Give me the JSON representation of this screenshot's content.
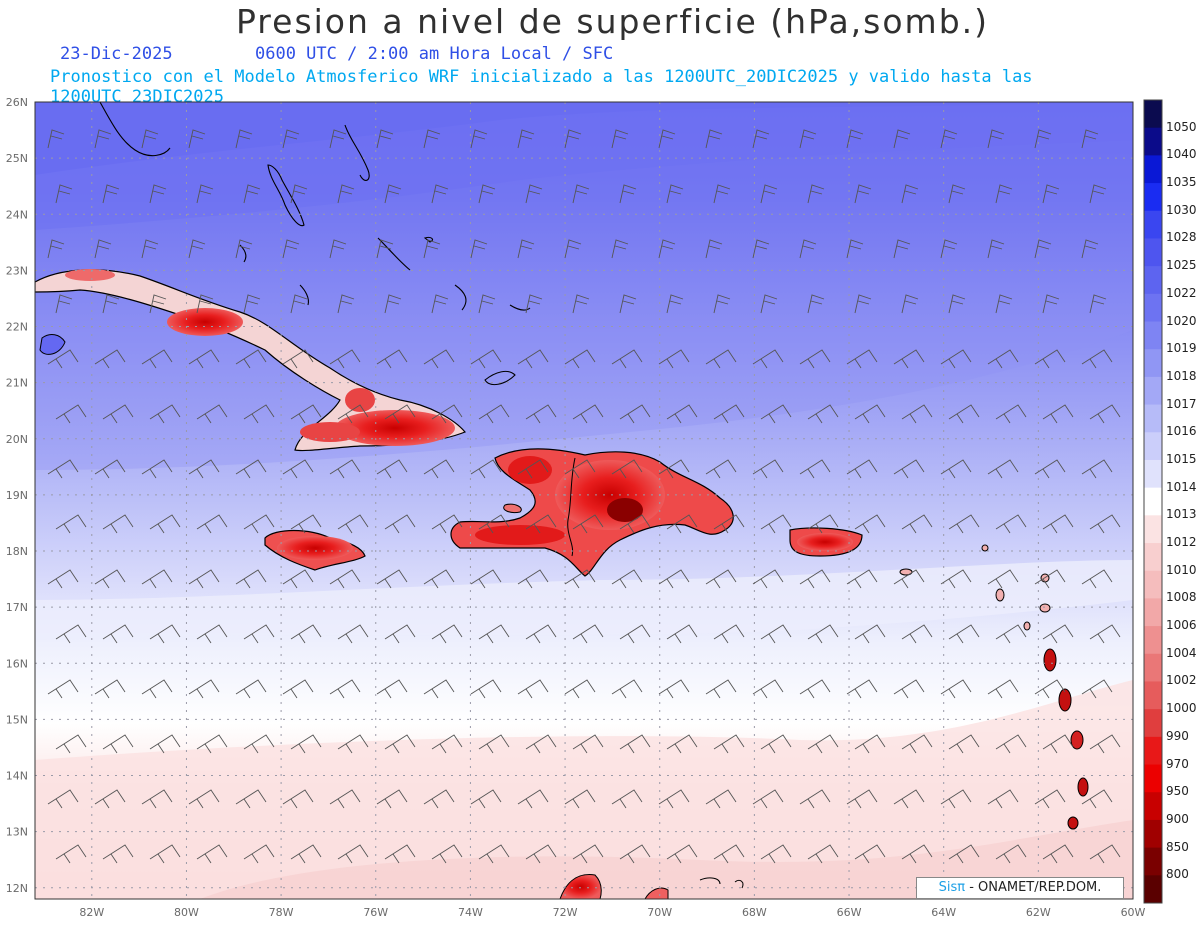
{
  "header": {
    "title": "Presion a nivel de superficie (hPa,somb.)",
    "date": "23-Dic-2025",
    "valid_time": "0600 UTC / 2:00 am Hora Local / SFC",
    "forecast_info": "Pronostico con el Modelo Atmosferico WRF inicializado a las 1200UTC_20DIC2025 y valido hasta las  1200UTC_23DIC2025"
  },
  "map": {
    "lat_labels": [
      "26N",
      "25N",
      "24N",
      "23N",
      "22N",
      "21N",
      "20N",
      "19N",
      "18N",
      "17N",
      "16N",
      "15N",
      "14N",
      "13N",
      "12N"
    ],
    "lon_labels": [
      "82W",
      "80W",
      "78W",
      "76W",
      "74W",
      "72W",
      "70W",
      "68W",
      "66W",
      "64W",
      "62W",
      "60W"
    ],
    "extent": {
      "lon_min": -83.2,
      "lon_max": -60.0,
      "lat_min": 11.8,
      "lat_max": 26.0
    },
    "islands": [
      "Cuba",
      "Jamaica",
      "Haiti",
      "Republica Dominicana",
      "Puerto Rico",
      "Bahamas",
      "Antillas Menores"
    ]
  },
  "colorbar": {
    "levels": [
      "1050",
      "1040",
      "1035",
      "1030",
      "1028",
      "1025",
      "1022",
      "1020",
      "1019",
      "1018",
      "1017",
      "1016",
      "1015",
      "1014",
      "1013",
      "1012",
      "1010",
      "1008",
      "1006",
      "1004",
      "1002",
      "1000",
      "990",
      "970",
      "950",
      "900",
      "850",
      "800"
    ],
    "colors": [
      "#0b0b4f",
      "#0b0b8a",
      "#0a18d6",
      "#1a2cf2",
      "#3a46f0",
      "#4e55ef",
      "#5d64f0",
      "#6d73f2",
      "#7e84f3",
      "#9096f4",
      "#a3a8f6",
      "#b6bbf8",
      "#cbcefa",
      "#e0e2fc",
      "#ffffff",
      "#fbe3e3",
      "#f8cfcf",
      "#f5bdbd",
      "#f2a8a8",
      "#ee9090",
      "#ea7777",
      "#e65c5c",
      "#e03e3e",
      "#e81818",
      "#ec0000",
      "#c80000",
      "#a00000",
      "#7a0000",
      "#5a0000"
    ]
  },
  "credit": {
    "brand": "Sisπ",
    "text": " - ONAMET/REP.DOM."
  }
}
